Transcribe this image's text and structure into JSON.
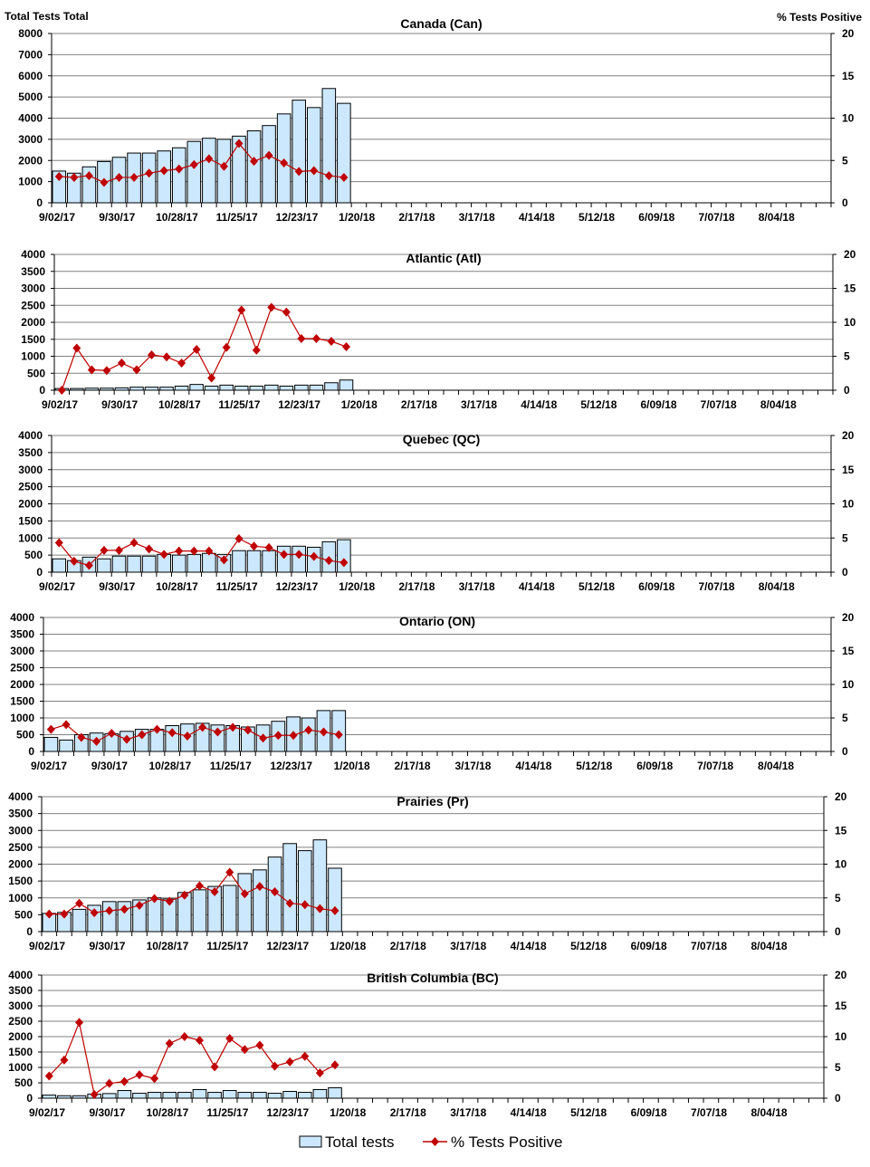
{
  "axis_titles": {
    "left": "Total Tests  Total",
    "right": "% Tests  Positive"
  },
  "legend": {
    "bars": "Total tests",
    "line": "% Tests Positive",
    "placement": "bottom"
  },
  "colors": {
    "bar_fill": "#CCE8FF",
    "bar_stroke": "#000000",
    "line": "#C00000",
    "grid": "#808080"
  },
  "x_tick_labels": [
    "9/02/17",
    "9/30/17",
    "10/28/17",
    "11/25/17",
    "12/23/17",
    "1/20/18",
    "2/17/18",
    "3/17/18",
    "4/14/18",
    "5/12/18",
    "6/09/18",
    "7/07/18",
    "8/04/18"
  ],
  "chart_data": [
    {
      "type": "bar+line",
      "title": "Canada (Can)",
      "weeks_total": 52,
      "ylim": [
        0,
        8000
      ],
      "y_step": 1000,
      "y2lim": [
        0,
        20
      ],
      "y2_step": 5,
      "grid": true,
      "x_start": "9/02/17",
      "total_tests": [
        1500,
        1400,
        1700,
        1950,
        2150,
        2350,
        2350,
        2450,
        2600,
        2900,
        3050,
        3000,
        3150,
        3400,
        3650,
        4200,
        4850,
        4500,
        5400,
        4700
      ],
      "pct_positive": [
        3.1,
        3.0,
        3.2,
        2.4,
        3.0,
        3.0,
        3.5,
        3.8,
        4.0,
        4.5,
        5.2,
        4.3,
        7.0,
        4.9,
        5.6,
        4.7,
        3.7,
        3.8,
        3.2,
        3.0
      ]
    },
    {
      "type": "bar+line",
      "title": "Atlantic (Atl)",
      "weeks_total": 52,
      "ylim": [
        0,
        4000
      ],
      "y_step": 500,
      "y2lim": [
        0,
        20
      ],
      "y2_step": 5,
      "grid": true,
      "x_start": "9/02/17",
      "total_tests": [
        50,
        50,
        60,
        60,
        70,
        90,
        90,
        90,
        120,
        170,
        120,
        150,
        120,
        120,
        150,
        120,
        150,
        150,
        220,
        300
      ],
      "pct_positive": [
        0,
        6.2,
        3.0,
        2.9,
        4.0,
        3.0,
        5.2,
        4.9,
        4.0,
        6.0,
        1.8,
        6.3,
        11.8,
        5.9,
        12.2,
        11.5,
        7.6,
        7.6,
        7.2,
        6.4
      ]
    },
    {
      "type": "bar+line",
      "title": "Quebec (QC)",
      "weeks_total": 52,
      "ylim": [
        0,
        4000
      ],
      "y_step": 500,
      "y2lim": [
        0,
        20
      ],
      "y2_step": 5,
      "grid": true,
      "x_start": "9/02/17",
      "total_tests": [
        390,
        340,
        440,
        390,
        470,
        470,
        470,
        520,
        500,
        520,
        550,
        520,
        630,
        630,
        630,
        760,
        760,
        730,
        890,
        950
      ],
      "pct_positive": [
        4.3,
        1.6,
        1.0,
        3.2,
        3.2,
        4.3,
        3.4,
        2.6,
        3.1,
        3.1,
        3.1,
        1.8,
        4.9,
        3.8,
        3.6,
        2.6,
        2.6,
        2.3,
        1.7,
        1.4
      ]
    },
    {
      "type": "bar+line",
      "title": "Ontario (ON)",
      "weeks_total": 52,
      "ylim": [
        0,
        4000
      ],
      "y_step": 500,
      "y2lim": [
        0,
        20
      ],
      "y2_step": 5,
      "grid": true,
      "x_start": "9/02/17",
      "total_tests": [
        420,
        340,
        500,
        550,
        530,
        600,
        660,
        660,
        770,
        820,
        840,
        790,
        770,
        730,
        790,
        900,
        1030,
        1000,
        1220,
        1220
      ],
      "pct_positive": [
        3.3,
        4.0,
        2.1,
        1.5,
        2.7,
        1.8,
        2.5,
        3.3,
        2.8,
        2.3,
        3.6,
        2.9,
        3.6,
        3.2,
        2.0,
        2.4,
        2.4,
        3.2,
        2.9,
        2.5
      ]
    },
    {
      "type": "bar+line",
      "title": "Prairies (Pr)",
      "weeks_total": 52,
      "ylim": [
        0,
        4000
      ],
      "y_step": 500,
      "y2lim": [
        0,
        20
      ],
      "y2_step": 5,
      "grid": true,
      "x_start": "9/02/17",
      "total_tests": [
        540,
        570,
        660,
        780,
        890,
        890,
        940,
        1000,
        970,
        1160,
        1240,
        1340,
        1370,
        1720,
        1830,
        2210,
        2610,
        2400,
        2720,
        1880
      ],
      "pct_positive": [
        2.6,
        2.6,
        4.2,
        2.8,
        3.1,
        3.3,
        3.9,
        4.9,
        4.5,
        5.4,
        6.8,
        5.9,
        8.8,
        5.6,
        6.7,
        5.9,
        4.2,
        4.0,
        3.4,
        3.1
      ]
    },
    {
      "type": "bar+line",
      "title": "British Columbia (BC)",
      "weeks_total": 52,
      "ylim": [
        0,
        4000
      ],
      "y_step": 500,
      "y2lim": [
        0,
        20
      ],
      "y2_step": 5,
      "grid": true,
      "x_start": "9/02/17",
      "total_tests": [
        100,
        80,
        80,
        130,
        150,
        250,
        160,
        190,
        190,
        190,
        280,
        190,
        250,
        190,
        190,
        160,
        220,
        190,
        280,
        340
      ],
      "pct_positive": [
        3.6,
        6.2,
        12.3,
        0.6,
        2.4,
        2.7,
        3.8,
        3.2,
        8.9,
        10.0,
        9.4,
        5.1,
        9.7,
        7.9,
        8.6,
        5.2,
        5.9,
        6.8,
        4.1,
        5.4
      ]
    }
  ]
}
